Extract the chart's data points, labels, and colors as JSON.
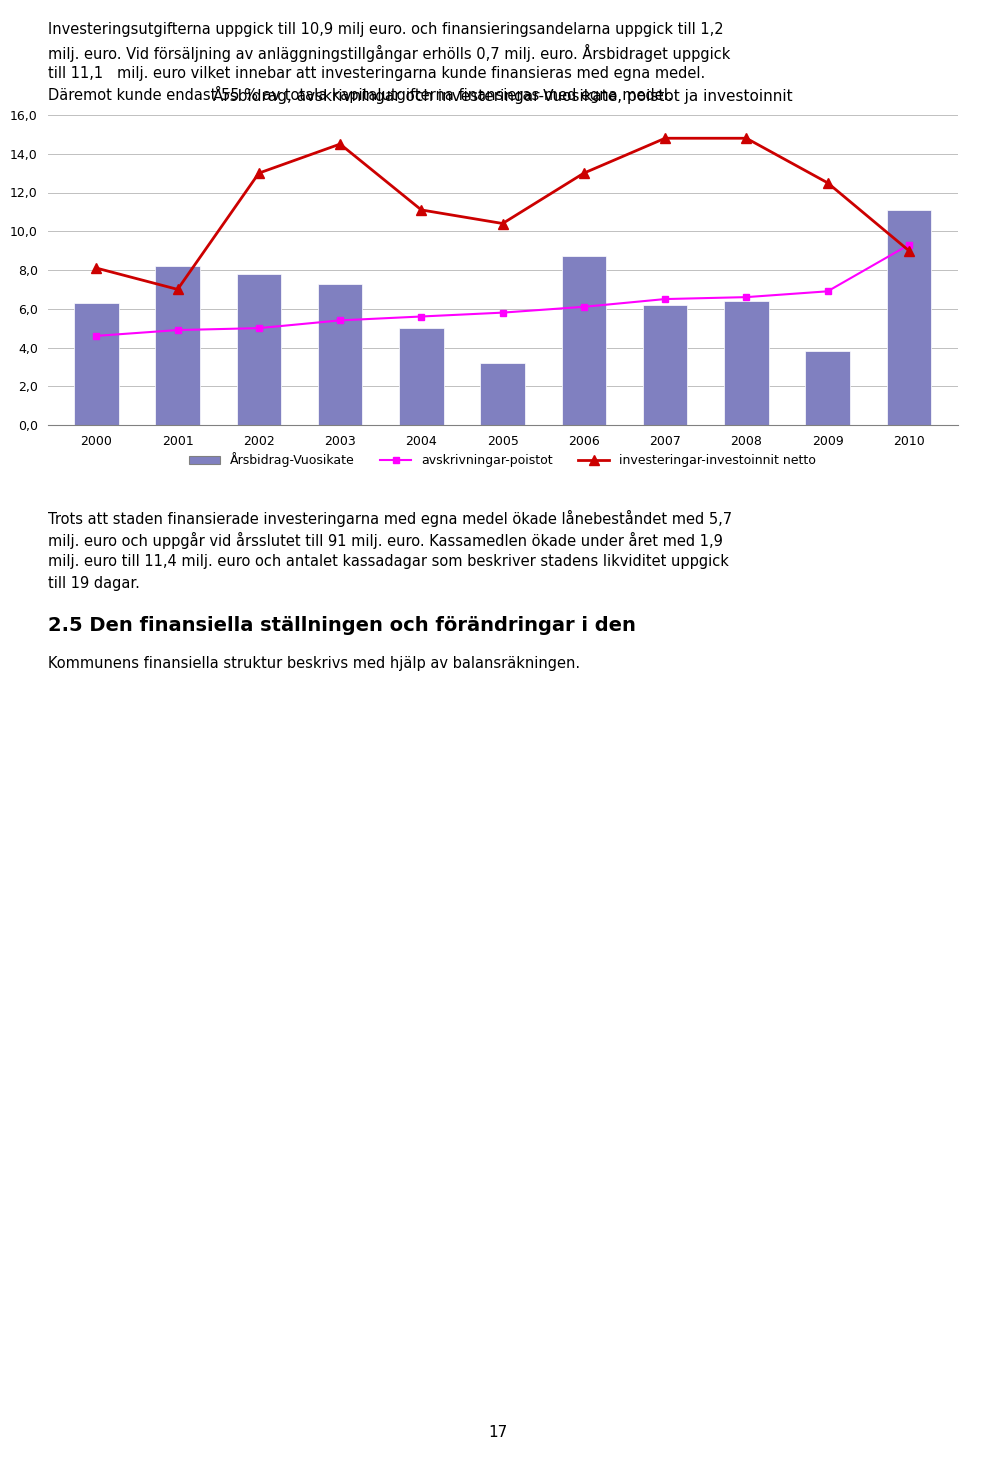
{
  "title": "Årsbidrag, avskrivningar och investeringar-Vuosikate, poistot ja investoinnit",
  "years": [
    2000,
    2001,
    2002,
    2003,
    2004,
    2005,
    2006,
    2007,
    2008,
    2009,
    2010
  ],
  "bars": [
    6.3,
    8.2,
    7.8,
    7.3,
    5.0,
    3.2,
    8.7,
    6.2,
    6.4,
    3.8,
    11.1
  ],
  "line_avskrivningar": [
    4.6,
    4.9,
    5.0,
    5.4,
    5.6,
    5.8,
    6.1,
    6.5,
    6.6,
    6.9,
    9.3
  ],
  "line_investeringar": [
    8.1,
    7.0,
    13.0,
    14.5,
    11.1,
    10.4,
    13.0,
    14.8,
    14.8,
    12.5,
    9.0
  ],
  "bar_color": "#8080C0",
  "line1_color": "#FF00FF",
  "line2_color": "#CC0000",
  "ylim": [
    0,
    16.0
  ],
  "yticks": [
    0.0,
    2.0,
    4.0,
    6.0,
    8.0,
    10.0,
    12.0,
    14.0,
    16.0
  ],
  "legend_bar_label": "Årsbidrag-Vuosikate",
  "legend_line1_label": "avskrivningar-poistot",
  "legend_line2_label": "investeringar-investoinnit netto",
  "title_fontsize": 11,
  "tick_fontsize": 9,
  "legend_fontsize": 9,
  "grid_color": "#C0C0C0",
  "page_number": "17",
  "text1": "Investeringsutgifterna uppgick till 10,9 milj euro. och finansieringsandelarna uppgick till 1,2",
  "text2": "milj. euro. Vid försäljning av anläggningstillgångar erhölls 0,7 milj. euro. Årsbidraget uppgick",
  "text3": "till 11,1   milj. euro vilket innebar att investeringarna kunde finansieras med egna medel.",
  "text4": "Däremot kunde endast 55 % av totala kapitalutgifterna finansieras med egna medel.",
  "text5": "Trots att staden finansierade investeringarna med egna medel ökade lånebeståndet med 5,7",
  "text6": "milj. euro och uppgår vid årsslutet till 91 milj. euro. Kassamedlen ökade under året med 1,9",
  "text7": "milj. euro till 11,4 milj. euro och antalet kassadagar som beskriver stadens likviditet uppgick",
  "text8": "till 19 dagar.",
  "heading": "2.5 Den finansiella ställningen och förändringar i den",
  "text9": "Kommunens finansiella struktur beskrivs med hjälp av balansraekningen."
}
